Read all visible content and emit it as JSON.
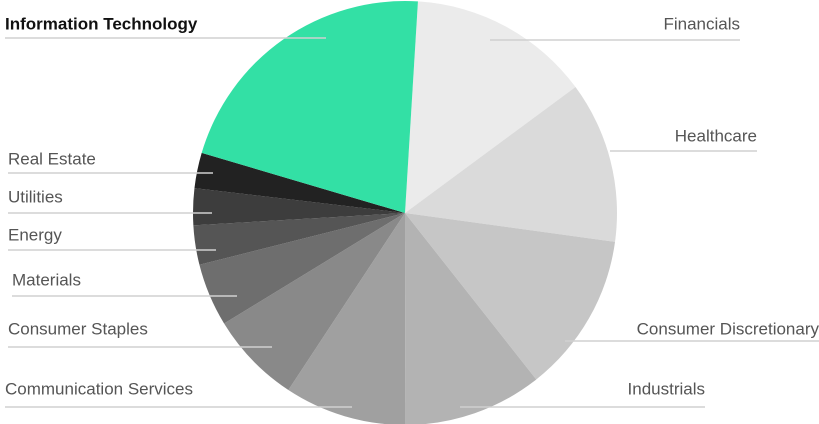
{
  "chart_data": {
    "type": "pie",
    "categories": [
      "Financials",
      "Healthcare",
      "Consumer Discretionary",
      "Industrials",
      "Communication Services",
      "Consumer Staples",
      "Materials",
      "Energy",
      "Utilities",
      "Real Estate",
      "Information Technology"
    ],
    "values": [
      13.9,
      12.3,
      12.2,
      10.6,
      9.3,
      7.0,
      4.8,
      3.0,
      2.8,
      2.7,
      21.4
    ],
    "colors": [
      "#ebebeb",
      "#dadada",
      "#c6c6c6",
      "#b3b3b3",
      "#a0a0a0",
      "#898989",
      "#6e6e6e",
      "#555555",
      "#3d3d3d",
      "#222222",
      "#33e0a5"
    ],
    "highlight": "Information Technology"
  }
}
